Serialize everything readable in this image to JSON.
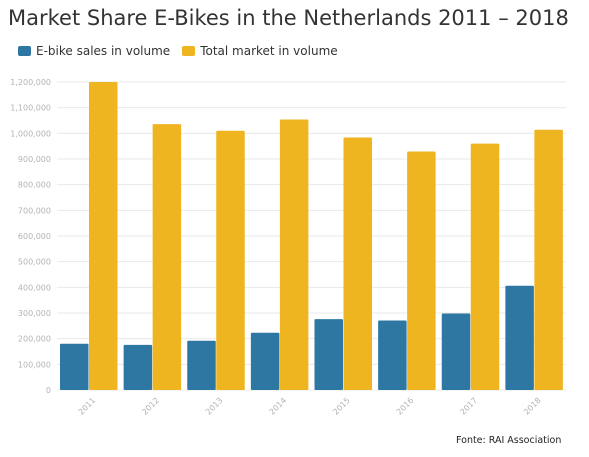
{
  "chart_data": {
    "type": "bar",
    "title": "Market Share E-Bikes in the Netherlands 2011 – 2018",
    "categories": [
      "2011",
      "2012",
      "2013",
      "2014",
      "2015",
      "2016",
      "2017",
      "2018"
    ],
    "series": [
      {
        "name": "E-bike sales in volume",
        "color": "#2e77a2",
        "values": [
          180000,
          176000,
          192000,
          223000,
          276000,
          271000,
          298000,
          406000
        ]
      },
      {
        "name": "Total market in volume",
        "color": "#eeb521",
        "values": [
          1200000,
          1036000,
          1010000,
          1054000,
          984000,
          929000,
          960000,
          1014000
        ]
      }
    ],
    "xlabel": "",
    "ylabel": "",
    "ylim": [
      0,
      1200000
    ],
    "yticks": [
      "0",
      "100,000",
      "200,000",
      "300,000",
      "400,000",
      "500,000",
      "600,000",
      "700,000",
      "800,000",
      "900,000",
      "1,000,000",
      "1,100,000",
      "1,200,000"
    ],
    "grid": true,
    "legend": "top-left"
  },
  "source": "Fonte: RAI Association"
}
